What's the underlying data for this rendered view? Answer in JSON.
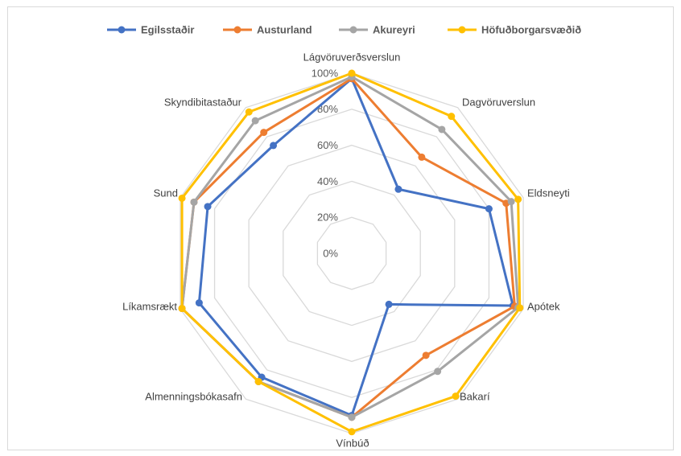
{
  "chart_data": {
    "type": "radar",
    "categories": [
      "Lágvöruverðsverslun",
      "Dagvöruverslun",
      "Eldsneyti",
      "Apótek",
      "Bakarí",
      "Vínbúð",
      "Almenningsbókasafn",
      "Líkamsrækt",
      "Sund",
      "Skyndibitastaður"
    ],
    "ticks": [
      "0%",
      "20%",
      "40%",
      "60%",
      "80%",
      "100%"
    ],
    "ylim": [
      0,
      100
    ],
    "grid": true,
    "legend_position": "top",
    "series": [
      {
        "name": "Egilsstaðir",
        "color": "#4472c4",
        "values": [
          97,
          44,
          80,
          94,
          35,
          90,
          85,
          89,
          84,
          74
        ]
      },
      {
        "name": "Austurland",
        "color": "#ed7d31",
        "values": [
          97,
          66,
          90,
          95,
          70,
          91,
          88,
          99,
          92,
          83
        ]
      },
      {
        "name": "Akureyri",
        "color": "#a5a5a5",
        "values": [
          98,
          85,
          93,
          97,
          81,
          91,
          88,
          99,
          92,
          91
        ]
      },
      {
        "name": "Höfuðborgarsvæðið",
        "color": "#ffc000",
        "values": [
          100,
          94,
          97,
          98,
          98,
          99,
          88,
          99,
          99,
          97
        ]
      }
    ]
  }
}
